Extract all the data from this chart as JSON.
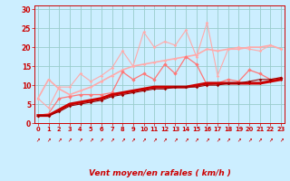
{
  "background_color": "#cceeff",
  "grid_color": "#99cccc",
  "x_values": [
    0,
    1,
    2,
    3,
    4,
    5,
    6,
    7,
    8,
    9,
    10,
    11,
    12,
    13,
    14,
    15,
    16,
    17,
    18,
    19,
    20,
    21,
    22,
    23
  ],
  "xlabel": "Vent moyen/en rafales ( km/h )",
  "tick_color": "#cc0000",
  "yticks": [
    0,
    5,
    10,
    15,
    20,
    25,
    30
  ],
  "ylim": [
    0,
    31
  ],
  "xlim": [
    -0.3,
    23.3
  ],
  "series": [
    {
      "color": "#ffaaaa",
      "linewidth": 0.8,
      "markersize": 1.8,
      "data": [
        6.5,
        4.0,
        9.5,
        9.5,
        13.0,
        11.0,
        12.5,
        14.5,
        19.0,
        15.0,
        24.0,
        20.0,
        21.5,
        20.5,
        24.5,
        17.5,
        26.5,
        12.5,
        19.5,
        20.0,
        19.5,
        19.0,
        20.5,
        19.5
      ]
    },
    {
      "color": "#ffaaaa",
      "linewidth": 1.2,
      "markersize": 1.8,
      "data": [
        6.5,
        11.5,
        9.0,
        7.5,
        8.5,
        9.5,
        11.0,
        12.5,
        14.0,
        15.0,
        15.5,
        16.0,
        16.5,
        17.0,
        17.5,
        18.0,
        19.5,
        19.0,
        19.5,
        19.5,
        20.0,
        20.0,
        20.5,
        19.5
      ]
    },
    {
      "color": "#ff7777",
      "linewidth": 0.9,
      "markersize": 2.2,
      "data": [
        2.0,
        2.5,
        6.5,
        7.0,
        7.5,
        7.5,
        7.5,
        8.0,
        13.5,
        11.5,
        13.0,
        11.5,
        15.5,
        13.0,
        17.5,
        15.5,
        10.0,
        10.5,
        11.5,
        11.0,
        14.0,
        13.0,
        11.5,
        12.0
      ]
    },
    {
      "color": "#cc0000",
      "linewidth": 2.2,
      "markersize": 1.5,
      "data": [
        2.0,
        2.0,
        3.5,
        5.0,
        5.5,
        6.0,
        6.5,
        7.5,
        8.0,
        8.5,
        9.0,
        9.5,
        9.5,
        9.5,
        9.5,
        10.0,
        10.5,
        10.5,
        10.5,
        10.5,
        10.5,
        10.5,
        11.0,
        11.5
      ]
    },
    {
      "color": "#990000",
      "linewidth": 0.8,
      "markersize": 1.8,
      "data": [
        2.0,
        2.0,
        3.0,
        4.5,
        5.0,
        5.5,
        6.0,
        7.0,
        7.5,
        8.0,
        8.5,
        9.0,
        9.0,
        9.5,
        9.5,
        9.5,
        10.0,
        10.0,
        10.5,
        10.5,
        11.0,
        11.5,
        11.5,
        12.0
      ]
    }
  ],
  "arrow_symbol": "↗",
  "figsize": [
    3.2,
    2.0
  ],
  "dpi": 100
}
